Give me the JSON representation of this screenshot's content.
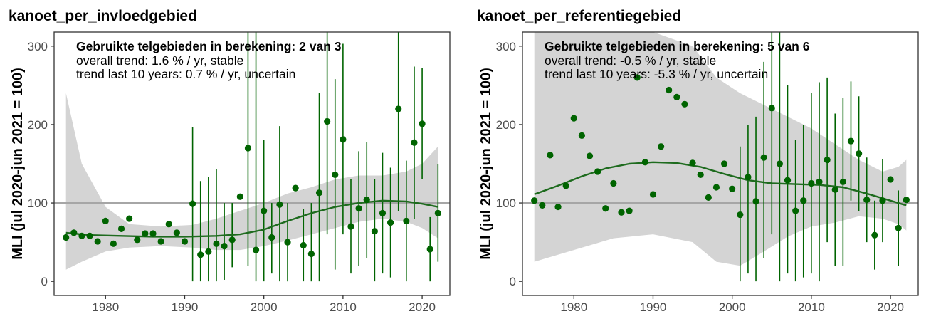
{
  "chart_data": [
    {
      "type": "scatter",
      "title": "kanoet_per_invloedgebied",
      "ylabel": "MLI (jul 2020-jun 2021 = 100)",
      "xlabel": "",
      "xlim": [
        1973.5,
        2023.5
      ],
      "ylim": [
        -18,
        318
      ],
      "xticks": [
        1980,
        1990,
        2000,
        2010,
        2020
      ],
      "yticks": [
        0,
        100,
        200,
        300
      ],
      "reference_line": 100,
      "grid": false,
      "annotation": {
        "heading": "Gebruikte telgebieden in berekening: 2 van 3",
        "line1": "overall trend: 1.6 % / yr, stable",
        "line2": "trend last 10 years: 0.7 % / yr, uncertain"
      },
      "colors": {
        "points": "#006400",
        "trend": "#1e6b1e",
        "ribbon": "#d4d4d4",
        "refline": "#a6a6a6"
      },
      "points": [
        {
          "x": 1975,
          "y": 56
        },
        {
          "x": 1976,
          "y": 62
        },
        {
          "x": 1977,
          "y": 58
        },
        {
          "x": 1978,
          "y": 58
        },
        {
          "x": 1979,
          "y": 51
        },
        {
          "x": 1980,
          "y": 77
        },
        {
          "x": 1981,
          "y": 48
        },
        {
          "x": 1982,
          "y": 67
        },
        {
          "x": 1983,
          "y": 80
        },
        {
          "x": 1984,
          "y": 53
        },
        {
          "x": 1985,
          "y": 61
        },
        {
          "x": 1986,
          "y": 61
        },
        {
          "x": 1987,
          "y": 51
        },
        {
          "x": 1988,
          "y": 73
        },
        {
          "x": 1989,
          "y": 62
        },
        {
          "x": 1990,
          "y": 51
        },
        {
          "x": 1991,
          "y": 99,
          "lo": 0,
          "hi": 197
        },
        {
          "x": 1992,
          "y": 34,
          "lo": 0,
          "hi": 128
        },
        {
          "x": 1993,
          "y": 38,
          "lo": 0,
          "hi": 133
        },
        {
          "x": 1994,
          "y": 48,
          "lo": 0,
          "hi": 143
        },
        {
          "x": 1995,
          "y": 45,
          "lo": 2,
          "hi": 100
        },
        {
          "x": 1996,
          "y": 53,
          "lo": 18,
          "hi": 100
        },
        {
          "x": 1997,
          "y": 108
        },
        {
          "x": 1998,
          "y": 170,
          "lo": 20,
          "hi": 318
        },
        {
          "x": 1999,
          "y": 40,
          "lo": 0,
          "hi": 318
        },
        {
          "x": 2000,
          "y": 90,
          "lo": 0,
          "hi": 180
        },
        {
          "x": 2001,
          "y": 56,
          "lo": 10,
          "hi": 100
        },
        {
          "x": 2002,
          "y": 98,
          "lo": 0,
          "hi": 198
        },
        {
          "x": 2003,
          "y": 50,
          "lo": 0,
          "hi": 100
        },
        {
          "x": 2004,
          "y": 119
        },
        {
          "x": 2005,
          "y": 46,
          "lo": 0,
          "hi": 92
        },
        {
          "x": 2006,
          "y": 35,
          "lo": 0,
          "hi": 100
        },
        {
          "x": 2007,
          "y": 113,
          "lo": 0,
          "hi": 240
        },
        {
          "x": 2008,
          "y": 204,
          "lo": 60,
          "hi": 318
        },
        {
          "x": 2009,
          "y": 136,
          "lo": 15,
          "hi": 258
        },
        {
          "x": 2010,
          "y": 181,
          "lo": 60,
          "hi": 303
        },
        {
          "x": 2011,
          "y": 70,
          "lo": 10,
          "hi": 130
        },
        {
          "x": 2012,
          "y": 93,
          "lo": 20,
          "hi": 166
        },
        {
          "x": 2013,
          "y": 104,
          "lo": 30,
          "hi": 178
        },
        {
          "x": 2014,
          "y": 64,
          "lo": 0,
          "hi": 130
        },
        {
          "x": 2015,
          "y": 87,
          "lo": 10,
          "hi": 164
        },
        {
          "x": 2016,
          "y": 75,
          "lo": 5,
          "hi": 145
        },
        {
          "x": 2017,
          "y": 220,
          "lo": 90,
          "hi": 318
        },
        {
          "x": 2018,
          "y": 77,
          "lo": 0,
          "hi": 154
        },
        {
          "x": 2019,
          "y": 177,
          "lo": 80,
          "hi": 274
        },
        {
          "x": 2020,
          "y": 201,
          "lo": 130,
          "hi": 272
        },
        {
          "x": 2021,
          "y": 41,
          "lo": 0,
          "hi": 82
        },
        {
          "x": 2022,
          "y": 87,
          "lo": 25,
          "hi": 150
        }
      ],
      "trend": [
        {
          "x": 1975,
          "y": 62
        },
        {
          "x": 1978,
          "y": 59
        },
        {
          "x": 1982,
          "y": 58
        },
        {
          "x": 1986,
          "y": 57
        },
        {
          "x": 1990,
          "y": 57
        },
        {
          "x": 1994,
          "y": 58
        },
        {
          "x": 1997,
          "y": 60
        },
        {
          "x": 2000,
          "y": 66
        },
        {
          "x": 2003,
          "y": 77
        },
        {
          "x": 2006,
          "y": 87
        },
        {
          "x": 2009,
          "y": 95
        },
        {
          "x": 2012,
          "y": 100
        },
        {
          "x": 2015,
          "y": 103
        },
        {
          "x": 2018,
          "y": 102
        },
        {
          "x": 2020,
          "y": 99
        },
        {
          "x": 2022,
          "y": 95
        }
      ],
      "ribbon": [
        {
          "x": 1975,
          "lo": 15,
          "hi": 240
        },
        {
          "x": 1977,
          "lo": 25,
          "hi": 150
        },
        {
          "x": 1980,
          "lo": 38,
          "hi": 95
        },
        {
          "x": 1983,
          "lo": 43,
          "hi": 73
        },
        {
          "x": 1987,
          "lo": 45,
          "hi": 70
        },
        {
          "x": 1991,
          "lo": 43,
          "hi": 72
        },
        {
          "x": 1994,
          "lo": 40,
          "hi": 80
        },
        {
          "x": 1997,
          "lo": 40,
          "hi": 90
        },
        {
          "x": 2000,
          "lo": 45,
          "hi": 100
        },
        {
          "x": 2003,
          "lo": 52,
          "hi": 112
        },
        {
          "x": 2006,
          "lo": 60,
          "hi": 120
        },
        {
          "x": 2009,
          "lo": 68,
          "hi": 130
        },
        {
          "x": 2012,
          "lo": 76,
          "hi": 135
        },
        {
          "x": 2015,
          "lo": 80,
          "hi": 135
        },
        {
          "x": 2018,
          "lo": 76,
          "hi": 140
        },
        {
          "x": 2020,
          "lo": 68,
          "hi": 150
        },
        {
          "x": 2022,
          "lo": 55,
          "hi": 172
        }
      ]
    },
    {
      "type": "scatter",
      "title": "kanoet_per_referentiegebied",
      "ylabel": "MLI (jul 2020-jun 2021 = 100)",
      "xlabel": "",
      "xlim": [
        1973.5,
        2023.5
      ],
      "ylim": [
        -18,
        318
      ],
      "xticks": [
        1980,
        1990,
        2000,
        2010,
        2020
      ],
      "yticks": [
        0,
        100,
        200,
        300
      ],
      "reference_line": 100,
      "grid": false,
      "annotation": {
        "heading": "Gebruikte telgebieden in berekening: 5 van 6",
        "line1": "overall trend: -0.5 % / yr, stable",
        "line2": "trend last 10 years: -5.3 % / yr, uncertain"
      },
      "colors": {
        "points": "#006400",
        "trend": "#1e6b1e",
        "ribbon": "#d4d4d4",
        "refline": "#a6a6a6"
      },
      "points": [
        {
          "x": 1975,
          "y": 103
        },
        {
          "x": 1976,
          "y": 97
        },
        {
          "x": 1977,
          "y": 161
        },
        {
          "x": 1978,
          "y": 95
        },
        {
          "x": 1979,
          "y": 122
        },
        {
          "x": 1980,
          "y": 208
        },
        {
          "x": 1981,
          "y": 186
        },
        {
          "x": 1982,
          "y": 160
        },
        {
          "x": 1983,
          "y": 140
        },
        {
          "x": 1984,
          "y": 93
        },
        {
          "x": 1985,
          "y": 125
        },
        {
          "x": 1986,
          "y": 88
        },
        {
          "x": 1987,
          "y": 90
        },
        {
          "x": 1988,
          "y": 260
        },
        {
          "x": 1989,
          "y": 152
        },
        {
          "x": 1990,
          "y": 111
        },
        {
          "x": 1991,
          "y": 172
        },
        {
          "x": 1992,
          "y": 244
        },
        {
          "x": 1993,
          "y": 235
        },
        {
          "x": 1994,
          "y": 226
        },
        {
          "x": 1995,
          "y": 151
        },
        {
          "x": 1996,
          "y": 136
        },
        {
          "x": 1997,
          "y": 107
        },
        {
          "x": 1998,
          "y": 120
        },
        {
          "x": 1999,
          "y": 150
        },
        {
          "x": 2000,
          "y": 118
        },
        {
          "x": 2001,
          "y": 85,
          "lo": 0,
          "hi": 172
        },
        {
          "x": 2002,
          "y": 133,
          "lo": 10,
          "hi": 200
        },
        {
          "x": 2003,
          "y": 102,
          "lo": 0,
          "hi": 210
        },
        {
          "x": 2004,
          "y": 158,
          "lo": 30,
          "hi": 280
        },
        {
          "x": 2005,
          "y": 221,
          "lo": 60,
          "hi": 318
        },
        {
          "x": 2006,
          "y": 150,
          "lo": 0,
          "hi": 318
        },
        {
          "x": 2007,
          "y": 129,
          "lo": 10,
          "hi": 250
        },
        {
          "x": 2008,
          "y": 90,
          "lo": 0,
          "hi": 180
        },
        {
          "x": 2009,
          "y": 103,
          "lo": 5,
          "hi": 200
        },
        {
          "x": 2010,
          "y": 125,
          "lo": 10,
          "hi": 240
        },
        {
          "x": 2011,
          "y": 127,
          "lo": 0,
          "hi": 254
        },
        {
          "x": 2012,
          "y": 155,
          "lo": 50,
          "hi": 260
        },
        {
          "x": 2013,
          "y": 117,
          "lo": 20,
          "hi": 214
        },
        {
          "x": 2014,
          "y": 127,
          "lo": 20,
          "hi": 234
        },
        {
          "x": 2015,
          "y": 179,
          "lo": 103,
          "hi": 255
        },
        {
          "x": 2016,
          "y": 163,
          "lo": 90,
          "hi": 236
        },
        {
          "x": 2017,
          "y": 104,
          "lo": 50,
          "hi": 158
        },
        {
          "x": 2018,
          "y": 59,
          "lo": 15,
          "hi": 103
        },
        {
          "x": 2019,
          "y": 103,
          "lo": 50,
          "hi": 156
        },
        {
          "x": 2020,
          "y": 130
        },
        {
          "x": 2021,
          "y": 68,
          "lo": 20,
          "hi": 116
        },
        {
          "x": 2022,
          "y": 104
        }
      ],
      "trend": [
        {
          "x": 1975,
          "y": 111
        },
        {
          "x": 1978,
          "y": 122
        },
        {
          "x": 1981,
          "y": 134
        },
        {
          "x": 1984,
          "y": 144
        },
        {
          "x": 1987,
          "y": 150
        },
        {
          "x": 1990,
          "y": 152
        },
        {
          "x": 1993,
          "y": 151
        },
        {
          "x": 1996,
          "y": 146
        },
        {
          "x": 1999,
          "y": 137
        },
        {
          "x": 2002,
          "y": 129
        },
        {
          "x": 2005,
          "y": 125
        },
        {
          "x": 2008,
          "y": 124
        },
        {
          "x": 2011,
          "y": 123
        },
        {
          "x": 2014,
          "y": 120
        },
        {
          "x": 2017,
          "y": 112
        },
        {
          "x": 2020,
          "y": 103
        },
        {
          "x": 2022,
          "y": 97
        }
      ],
      "ribbon": [
        {
          "x": 1975,
          "lo": 25,
          "hi": 318
        },
        {
          "x": 1980,
          "lo": 40,
          "hi": 318
        },
        {
          "x": 1985,
          "lo": 55,
          "hi": 318
        },
        {
          "x": 1990,
          "lo": 60,
          "hi": 318
        },
        {
          "x": 1995,
          "lo": 50,
          "hi": 300
        },
        {
          "x": 1998,
          "lo": 25,
          "hi": 260
        },
        {
          "x": 2001,
          "lo": 20,
          "hi": 240
        },
        {
          "x": 2004,
          "lo": 38,
          "hi": 225
        },
        {
          "x": 2007,
          "lo": 57,
          "hi": 210
        },
        {
          "x": 2010,
          "lo": 70,
          "hi": 195
        },
        {
          "x": 2013,
          "lo": 75,
          "hi": 175
        },
        {
          "x": 2016,
          "lo": 83,
          "hi": 155
        },
        {
          "x": 2019,
          "lo": 80,
          "hi": 140
        },
        {
          "x": 2021,
          "lo": 73,
          "hi": 146
        },
        {
          "x": 2022,
          "lo": 65,
          "hi": 155
        }
      ]
    }
  ]
}
